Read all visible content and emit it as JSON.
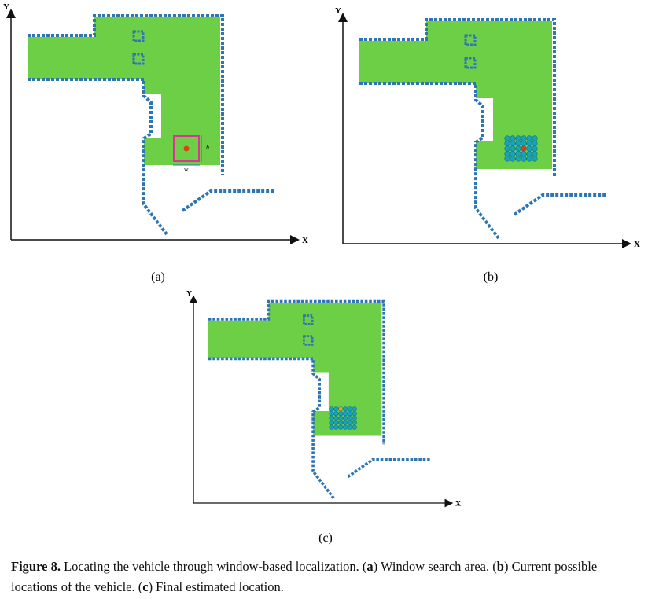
{
  "panels": [
    {
      "y_label": "Y",
      "x_label": "X",
      "caption": "(a)",
      "window_height_label": "h",
      "window_width_label": "w"
    },
    {
      "y_label": "Y",
      "x_label": "X",
      "caption": "(b)"
    },
    {
      "y_label": "Y",
      "x_label": "X",
      "caption": "(c)"
    }
  ],
  "caption": [
    {
      "text": "Figure 8.",
      "bold": true
    },
    {
      "text": " Locating the vehicle through window-based localization. (",
      "bold": false
    },
    {
      "text": "a",
      "bold": true
    },
    {
      "text": ") Window search area. (",
      "bold": false
    },
    {
      "text": "b",
      "bold": true
    },
    {
      "text": ") Current possible locations of the vehicle. (",
      "bold": false
    },
    {
      "text": "c",
      "bold": true
    },
    {
      "text": ") Final estimated location.",
      "bold": false
    }
  ]
}
